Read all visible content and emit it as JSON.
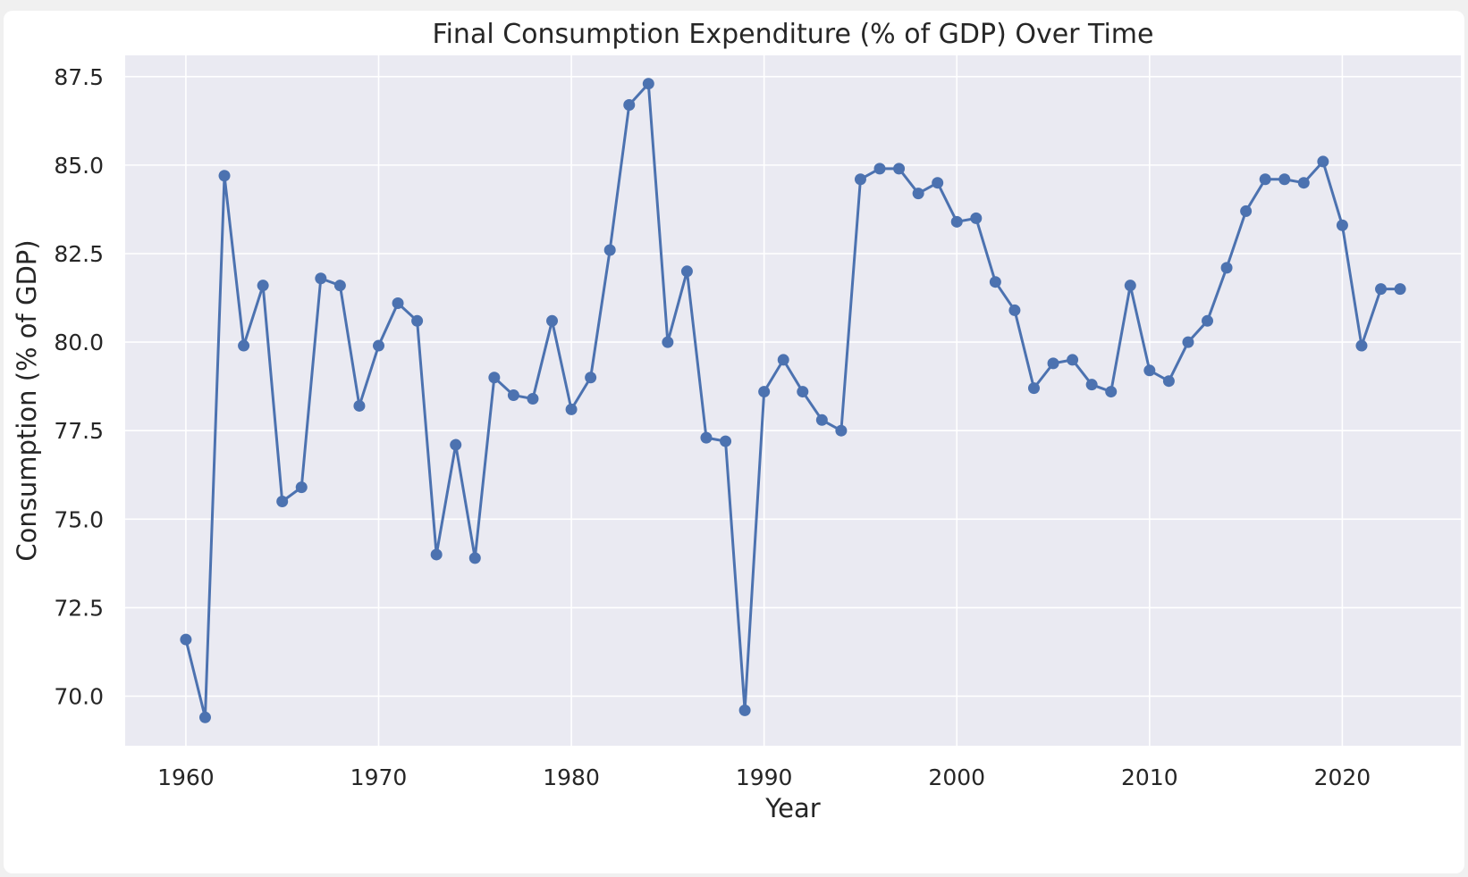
{
  "chart_data": {
    "type": "line",
    "title": "Final Consumption Expenditure (% of GDP) Over Time",
    "xlabel": "Year",
    "ylabel": "Consumption (% of GDP)",
    "xlim": [
      1956.85,
      2026.15
    ],
    "ylim": [
      68.6,
      88.1
    ],
    "xticks": [
      1960,
      1970,
      1980,
      1990,
      2000,
      2010,
      2020
    ],
    "xtick_labels": [
      "1960",
      "1970",
      "1980",
      "1990",
      "2000",
      "2010",
      "2020"
    ],
    "yticks": [
      70.0,
      72.5,
      75.0,
      77.5,
      80.0,
      82.5,
      85.0,
      87.5
    ],
    "ytick_labels": [
      "70.0",
      "72.5",
      "75.0",
      "77.5",
      "80.0",
      "82.5",
      "85.0",
      "87.5"
    ],
    "grid": true,
    "legend": "none",
    "colors": {
      "line": "#4c72b0",
      "plot_background": "#eaeaf2",
      "grid": "#ffffff"
    },
    "x": [
      1960,
      1961,
      1962,
      1963,
      1964,
      1965,
      1966,
      1967,
      1968,
      1969,
      1970,
      1971,
      1972,
      1973,
      1974,
      1975,
      1976,
      1977,
      1978,
      1979,
      1980,
      1981,
      1982,
      1983,
      1984,
      1985,
      1986,
      1987,
      1988,
      1989,
      1990,
      1991,
      1992,
      1993,
      1994,
      1995,
      1996,
      1997,
      1998,
      1999,
      2000,
      2001,
      2002,
      2003,
      2004,
      2005,
      2006,
      2007,
      2008,
      2009,
      2010,
      2011,
      2012,
      2013,
      2014,
      2015,
      2016,
      2017,
      2018,
      2019,
      2020,
      2021,
      2022,
      2023
    ],
    "values": [
      71.6,
      69.4,
      84.7,
      79.9,
      81.6,
      75.5,
      75.9,
      81.8,
      81.6,
      78.2,
      79.9,
      81.1,
      80.6,
      74.0,
      77.1,
      73.9,
      79.0,
      78.5,
      78.4,
      80.6,
      78.1,
      79.0,
      82.6,
      86.7,
      87.3,
      80.0,
      82.0,
      77.3,
      77.2,
      69.6,
      78.6,
      79.5,
      78.6,
      77.8,
      77.5,
      84.6,
      84.9,
      84.9,
      84.2,
      84.5,
      83.4,
      83.5,
      81.7,
      80.9,
      78.7,
      79.4,
      79.5,
      78.8,
      78.6,
      81.6,
      79.2,
      78.9,
      80.0,
      80.6,
      82.1,
      83.7,
      84.6,
      84.6,
      84.5,
      85.1,
      83.3,
      79.9,
      81.5,
      81.5
    ]
  }
}
